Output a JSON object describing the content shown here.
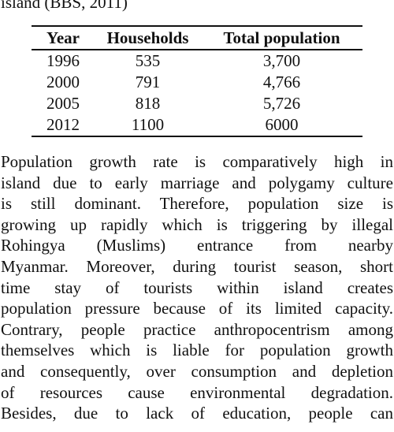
{
  "caption": "island (BBS, 2011)",
  "table": {
    "headers": [
      "Year",
      "Households",
      "Total population"
    ],
    "rows": [
      [
        "1996",
        "535",
        "3,700"
      ],
      [
        "2000",
        "791",
        "4,766"
      ],
      [
        "2005",
        "818",
        "5,726"
      ],
      [
        "2012",
        "1100",
        "6000"
      ]
    ]
  },
  "paragraph_lines": [
    "Population growth rate is comparatively high in",
    "island due to early marriage and polygamy culture",
    "is still dominant. Therefore, population size is",
    "growing up rapidly which is triggering by illegal",
    "Rohingya (Muslims) entrance from nearby",
    "Myanmar. Moreover, during tourist season, short",
    "time stay of tourists within island creates",
    "population pressure because of its limited capacity.",
    "Contrary, people practice anthropocentrism among",
    "themselves which is liable for population growth",
    "and consequently, over consumption and depletion",
    "of resources cause environmental degradation.",
    "Besides, due to lack of education, people can"
  ]
}
